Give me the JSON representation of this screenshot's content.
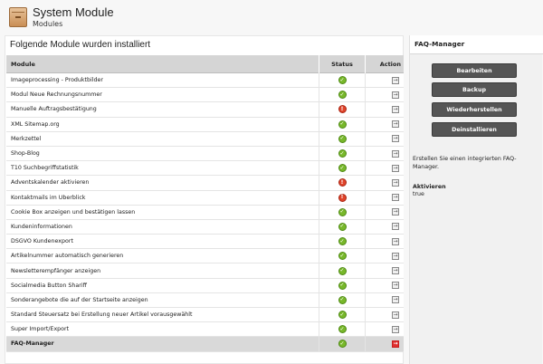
{
  "header": {
    "title": "System Module",
    "subtitle": "Modules",
    "icon": "module-box-icon"
  },
  "main": {
    "heading": "Folgende Module wurden installiert",
    "columns": {
      "module": "Module",
      "status": "Status",
      "action": "Action"
    },
    "rows": [
      {
        "name": "Imageprocessing - Produktbilder",
        "status": "ok"
      },
      {
        "name": "Modul Neue Rechnungsnummer",
        "status": "ok"
      },
      {
        "name": "Manuelle Auftragsbestätigung",
        "status": "warn"
      },
      {
        "name": "XML Sitemap.org",
        "status": "ok"
      },
      {
        "name": "Merkzettel",
        "status": "ok"
      },
      {
        "name": "Shop-Blog",
        "status": "ok"
      },
      {
        "name": "T10 Suchbegriffstatistik",
        "status": "ok"
      },
      {
        "name": "Adventskalender aktivieren",
        "status": "warn"
      },
      {
        "name": "Kontaktmails im Überblick",
        "status": "warn"
      },
      {
        "name": "Cookie Box anzeigen und bestätigen lassen",
        "status": "ok"
      },
      {
        "name": "Kundeninformationen",
        "status": "ok"
      },
      {
        "name": "DSGVO Kundenexport",
        "status": "ok"
      },
      {
        "name": "Artikelnummer automatisch generieren",
        "status": "ok"
      },
      {
        "name": "Newsletterempfänger anzeigen",
        "status": "ok"
      },
      {
        "name": "Socialmedia Button Shariff",
        "status": "ok"
      },
      {
        "name": "Sonderangebote die auf der Startseite anzeigen",
        "status": "ok"
      },
      {
        "name": "Standard Steuersatz bei Erstellung neuer Artikel vorausgewählt",
        "status": "ok"
      },
      {
        "name": "Super Import/Export",
        "status": "ok"
      },
      {
        "name": "FAQ-Manager",
        "status": "ok",
        "selected": true
      }
    ]
  },
  "side": {
    "title": "FAQ-Manager",
    "buttons": [
      "Bearbeiten",
      "Backup",
      "Wiederherstellen",
      "Deinstallieren"
    ],
    "description": "Erstellen Sie einen integrierten FAQ-Manager.",
    "status_label": "Aktivieren",
    "status_value": "true"
  },
  "colors": {
    "ok": "#78b82a",
    "warn": "#e0442b",
    "button": "#555555",
    "selected_row": "#d9d9d9",
    "header_row": "#d5d5d5"
  }
}
